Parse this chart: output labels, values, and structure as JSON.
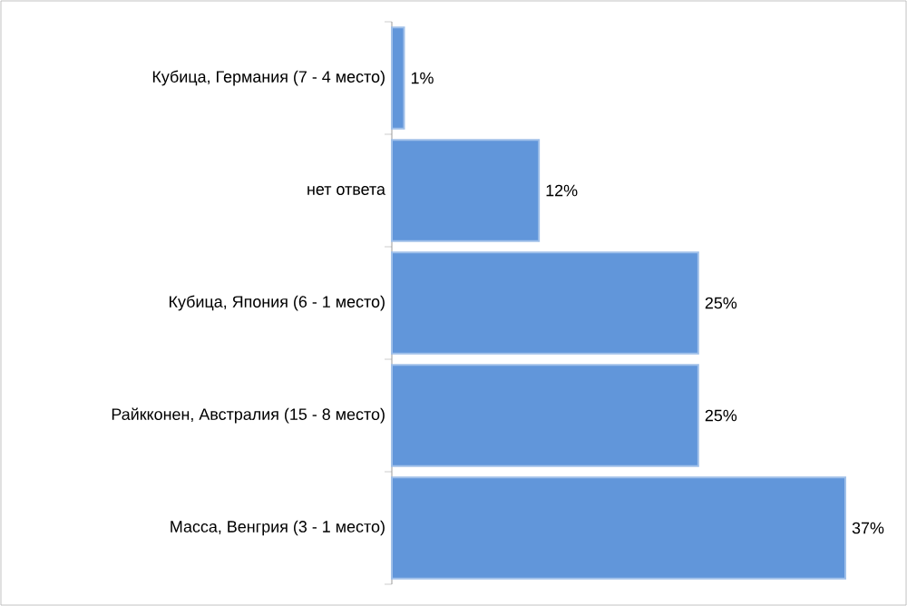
{
  "chart_data": {
    "type": "bar",
    "orientation": "horizontal",
    "categories": [
      "Кубица, Германия (7 - 4 место)",
      "нет ответа",
      "Кубица, Япония (6 - 1 место)",
      "Райкконен, Австралия (15 - 8 место)",
      "Масса, Венгрия (3 - 1 место)"
    ],
    "values": [
      1,
      12,
      25,
      25,
      37
    ],
    "value_labels": [
      "1%",
      "12%",
      "25%",
      "25%",
      "37%"
    ],
    "color": "#6196da"
  }
}
